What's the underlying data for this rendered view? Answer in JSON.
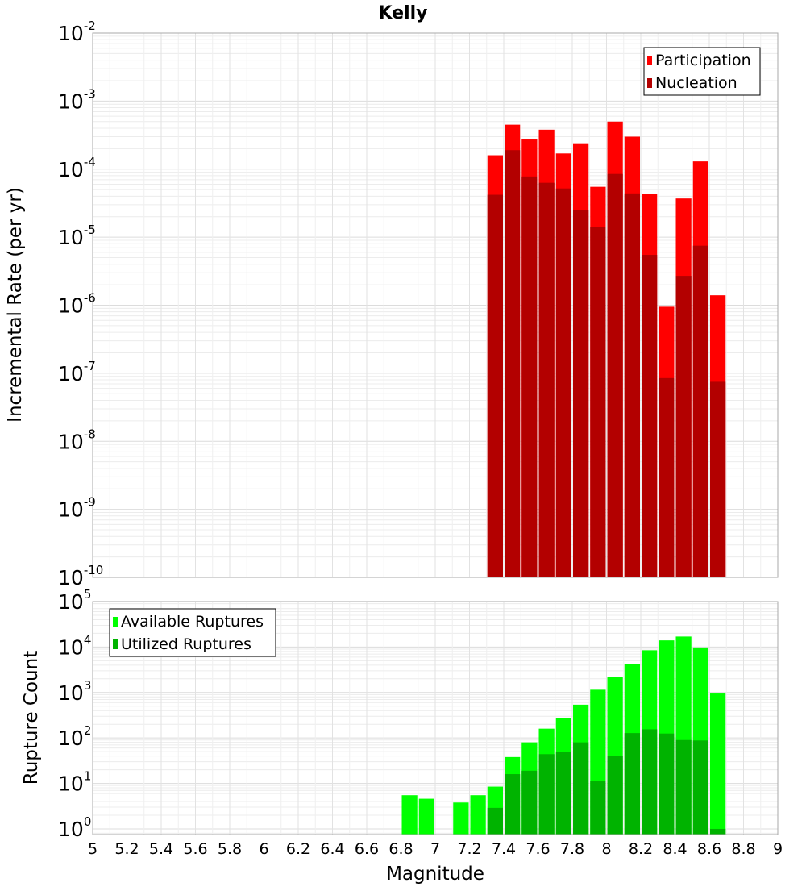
{
  "chart_data": [
    {
      "type": "bar",
      "title": "Kelly",
      "xlabel": "",
      "ylabel": "Incremental Rate (per yr)",
      "y_scale": "log",
      "ylim": [
        1e-10,
        0.01
      ],
      "xlim": [
        5,
        9
      ],
      "bar_width": 0.1,
      "legend_position": "top-right",
      "x": [
        7.35,
        7.45,
        7.55,
        7.65,
        7.75,
        7.85,
        7.95,
        8.05,
        8.15,
        8.25,
        8.35,
        8.45,
        8.55,
        8.65
      ],
      "series": [
        {
          "name": "Participation",
          "color": "#ff0000",
          "values": [
            0.00016,
            0.00045,
            0.00028,
            0.00038,
            0.00017,
            0.00024,
            5.5e-05,
            0.0005,
            0.0003,
            4.3e-05,
            9.5e-07,
            3.7e-05,
            0.00013,
            1.4e-06
          ]
        },
        {
          "name": "Nucleation",
          "color": "#b30000",
          "values": [
            4.2e-05,
            0.00019,
            7.8e-05,
            6.3e-05,
            5.2e-05,
            2.5e-05,
            1.4e-05,
            8.5e-05,
            4.4e-05,
            5.5e-06,
            8.5e-08,
            2.7e-06,
            7.5e-06,
            7.5e-08
          ]
        }
      ]
    },
    {
      "type": "bar",
      "title": "",
      "xlabel": "Magnitude",
      "ylabel": "Rupture Count",
      "y_scale": "log",
      "ylim": [
        0.75,
        100000
      ],
      "xlim": [
        5,
        9
      ],
      "bar_width": 0.1,
      "legend_position": "top-left",
      "x_ticks": [
        "5",
        "5.2",
        "5.4",
        "5.6",
        "5.8",
        "6",
        "6.2",
        "6.4",
        "6.6",
        "6.8",
        "7",
        "7.2",
        "7.4",
        "7.6",
        "7.8",
        "8",
        "8.2",
        "8.4",
        "8.6",
        "8.8",
        "9"
      ],
      "x": [
        6.85,
        6.95,
        7.15,
        7.25,
        7.35,
        7.45,
        7.55,
        7.65,
        7.75,
        7.85,
        7.95,
        8.05,
        8.15,
        8.25,
        8.35,
        8.45,
        8.55,
        8.65
      ],
      "series": [
        {
          "name": "Available Ruptures",
          "color": "#00ff00",
          "values": [
            5.5,
            4.6,
            3.8,
            5.5,
            8.5,
            38,
            80,
            160,
            270,
            540,
            1150,
            2200,
            4300,
            8500,
            14000,
            17000,
            9800,
            950
          ]
        },
        {
          "name": "Utilized Ruptures",
          "color": "#00b300",
          "values": [
            0,
            0,
            0,
            0,
            2.9,
            16,
            19,
            44,
            49,
            80,
            11.5,
            41,
            128,
            155,
            125,
            90,
            88,
            1
          ]
        }
      ]
    }
  ]
}
